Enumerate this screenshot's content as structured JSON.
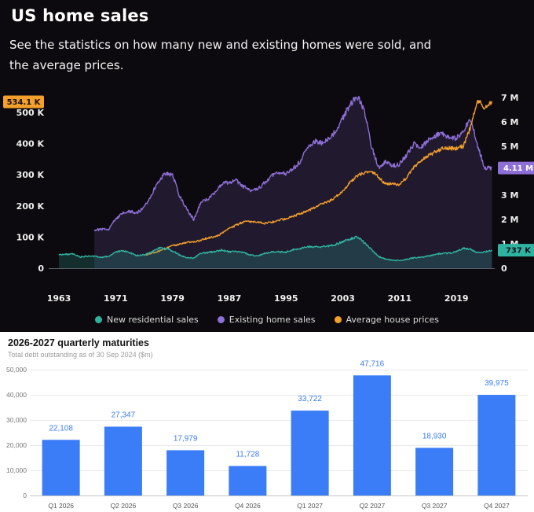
{
  "top": {
    "title": "US home sales",
    "subtitle": "See the statistics on how many new and existing homes were sold, and\nthe average prices.",
    "background": "#0c0a0e",
    "legend": [
      {
        "label": "New residential sales",
        "color": "#2fb3a0"
      },
      {
        "label": "Existing home sales",
        "color": "#8e6fd8"
      },
      {
        "label": "Average house prices",
        "color": "#f5a02a"
      }
    ]
  },
  "bottom": {
    "title": "2026-2027 quarterly maturities",
    "subtitle": "Total debt outstanding as of 30 Sep 2024 ($m)",
    "bar_color": "#3b7cf7"
  },
  "chart_data": [
    {
      "type": "line",
      "title": "US home sales",
      "x_tick_labels": [
        "1963",
        "1971",
        "1979",
        "1987",
        "1995",
        "2003",
        "2011",
        "2019"
      ],
      "x_tick_years": [
        1963,
        1971,
        1979,
        1987,
        1995,
        2003,
        2011,
        2019
      ],
      "left_axis": {
        "unit": "thousands (K)",
        "tick_values": [
          0,
          100,
          200,
          300,
          400,
          500
        ],
        "tick_labels": [
          "0",
          "100 K",
          "200 K",
          "300 K",
          "400 K",
          "500 K"
        ]
      },
      "right_axis": {
        "unit": "millions (M)",
        "tick_values": [
          0,
          1,
          2,
          3,
          4,
          5,
          6,
          7
        ],
        "tick_labels": [
          "0",
          "1 M",
          "2 M",
          "3 M",
          "4 M",
          "5 M",
          "6 M",
          "7 M"
        ]
      },
      "legend_position": "bottom",
      "grid": false,
      "series": [
        {
          "name": "New residential sales",
          "axis": "right",
          "unit": "M",
          "color": "#2fb3a0",
          "start_year": 1963,
          "end_label": "737 K",
          "annual_values": [
            0.56,
            0.57,
            0.575,
            0.46,
            0.49,
            0.49,
            0.45,
            0.485,
            0.656,
            0.718,
            0.634,
            0.519,
            0.549,
            0.646,
            0.819,
            0.817,
            0.709,
            0.545,
            0.436,
            0.412,
            0.623,
            0.639,
            0.688,
            0.75,
            0.671,
            0.676,
            0.65,
            0.534,
            0.509,
            0.61,
            0.666,
            0.67,
            0.667,
            0.757,
            0.804,
            0.886,
            0.88,
            0.877,
            0.908,
            0.973,
            1.086,
            1.203,
            1.283,
            1.051,
            0.776,
            0.485,
            0.375,
            0.323,
            0.306,
            0.368,
            0.429,
            0.437,
            0.501,
            0.561,
            0.613,
            0.617,
            0.683,
            0.822,
            0.771,
            0.637,
            0.666,
            0.737
          ]
        },
        {
          "name": "Existing home sales",
          "axis": "right",
          "unit": "M",
          "color": "#8e6fd8",
          "start_year": 1968,
          "end_label": "4.11 M",
          "annual_values": [
            1.57,
            1.59,
            1.61,
            2.02,
            2.25,
            2.33,
            2.27,
            2.48,
            3.0,
            3.55,
            3.9,
            3.83,
            2.97,
            2.42,
            1.99,
            2.7,
            2.83,
            3.13,
            3.47,
            3.53,
            3.59,
            3.35,
            3.21,
            3.22,
            3.52,
            3.8,
            3.95,
            3.85,
            4.09,
            4.37,
            4.97,
            5.2,
            5.15,
            5.3,
            5.63,
            6.18,
            6.72,
            7.08,
            6.48,
            5.03,
            4.12,
            4.34,
            4.19,
            4.26,
            4.66,
            5.09,
            4.94,
            5.25,
            5.45,
            5.51,
            5.34,
            5.33,
            5.64,
            6.12,
            5.03,
            4.09,
            4.11
          ]
        },
        {
          "name": "Average house prices",
          "axis": "left",
          "unit": "K",
          "color": "#f5a02a",
          "start_year": 1975,
          "end_label": "534.1 K",
          "annual_values": [
            42.6,
            48,
            54.2,
            62.5,
            71.8,
            76.4,
            83,
            83.9,
            89.8,
            97.6,
            100.8,
            111.9,
            127.2,
            138.3,
            148.8,
            149.8,
            147.2,
            144.1,
            147.7,
            154.5,
            158.7,
            166.4,
            176.2,
            181.9,
            195.6,
            207,
            213.2,
            228.7,
            246.3,
            274.5,
            297,
            305.9,
            313.6,
            292.6,
            270.9,
            272.9,
            267.9,
            292.2,
            324.5,
            345.8,
            360.6,
            372.5,
            384.9,
            385,
            383.9,
            391.9,
            453.7,
            540,
            511.1,
            534.1
          ]
        }
      ]
    },
    {
      "type": "bar",
      "title": "2026-2027 quarterly maturities",
      "subtitle": "Total debt outstanding as of 30 Sep 2024 ($m)",
      "categories": [
        "Q1 2026",
        "Q2 2026",
        "Q3 2026",
        "Q4 2026",
        "Q1 2027",
        "Q2 2027",
        "Q3 2027",
        "Q4 2027"
      ],
      "values": [
        22108,
        27347,
        17979,
        11728,
        33722,
        47716,
        18930,
        39975
      ],
      "value_labels": [
        "22,108",
        "27,347",
        "17,979",
        "11,728",
        "33,722",
        "47,716",
        "18,930",
        "39,975"
      ],
      "y_tick_values": [
        0,
        10000,
        20000,
        30000,
        40000,
        50000
      ],
      "y_tick_labels": [
        "0",
        "10,000",
        "20,000",
        "30,000",
        "40,000",
        "50,000"
      ],
      "ylim": [
        0,
        50000
      ],
      "bar_color": "#3b7cf7",
      "grid": true,
      "xlabel": "",
      "ylabel": ""
    }
  ]
}
